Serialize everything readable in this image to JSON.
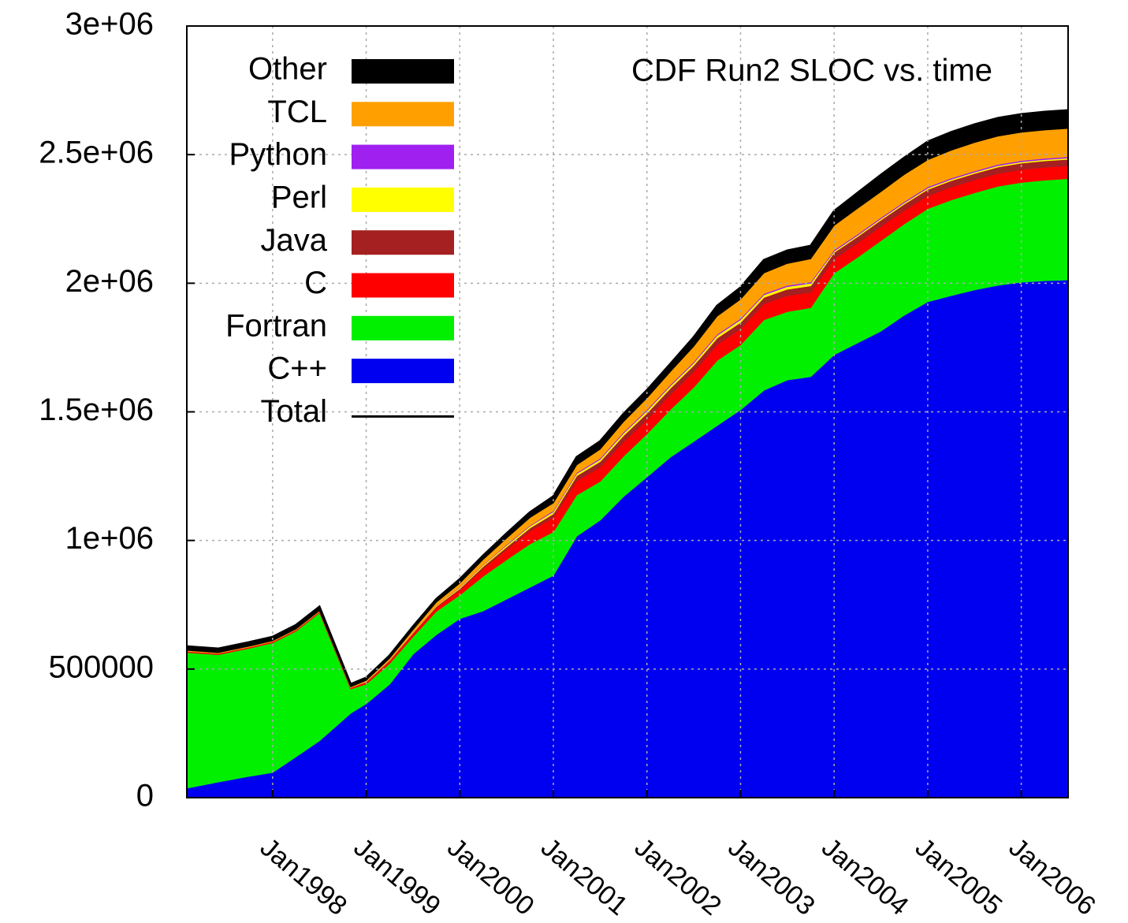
{
  "chart_data": {
    "type": "area",
    "stacked": true,
    "title": "CDF Run2 SLOC vs. time",
    "x": [
      "1997-02",
      "1997-06",
      "1997-10",
      "1998-01",
      "1998-04",
      "1998-07",
      "1998-11",
      "1999-01",
      "1999-04",
      "1999-07",
      "1999-10",
      "2000-01",
      "2000-04",
      "2000-07",
      "2000-10",
      "2001-01",
      "2001-04",
      "2001-07",
      "2001-10",
      "2002-01",
      "2002-04",
      "2002-07",
      "2002-10",
      "2003-01",
      "2003-04",
      "2003-07",
      "2003-10",
      "2004-01",
      "2004-04",
      "2004-07",
      "2004-10",
      "2005-01",
      "2005-04",
      "2005-07",
      "2005-10",
      "2006-01",
      "2006-04",
      "2006-07"
    ],
    "xlim": [
      "1997-02",
      "2006-07"
    ],
    "xticks": [
      {
        "value": "1998-01",
        "label": "Jan1998"
      },
      {
        "value": "1999-01",
        "label": "Jan1999"
      },
      {
        "value": "2000-01",
        "label": "Jan2000"
      },
      {
        "value": "2001-01",
        "label": "Jan2001"
      },
      {
        "value": "2002-01",
        "label": "Jan2002"
      },
      {
        "value": "2003-01",
        "label": "Jan2003"
      },
      {
        "value": "2004-01",
        "label": "Jan2004"
      },
      {
        "value": "2005-01",
        "label": "Jan2005"
      },
      {
        "value": "2006-01",
        "label": "Jan2006"
      }
    ],
    "ylim": [
      0,
      3000000
    ],
    "yticks": [
      0,
      500000,
      {
        "value": 1000000,
        "label": "1e+06"
      },
      {
        "value": 1500000,
        "label": "1.5e+06"
      },
      {
        "value": 2000000,
        "label": "2e+06"
      },
      {
        "value": 2500000,
        "label": "2.5e+06"
      },
      {
        "value": 3000000,
        "label": "3e+06"
      }
    ],
    "grid": true,
    "legend": "upper-left",
    "series": [
      {
        "name": "C++",
        "color": "#0000f0",
        "values": [
          37000,
          61000,
          83000,
          98000,
          159000,
          221000,
          328000,
          365000,
          441000,
          558000,
          634000,
          696000,
          726000,
          772000,
          818000,
          864000,
          1017000,
          1079000,
          1171000,
          1247000,
          1324000,
          1385000,
          1447000,
          1508000,
          1584000,
          1624000,
          1637000,
          1722000,
          1768000,
          1814000,
          1876000,
          1928000,
          1952000,
          1974000,
          1992000,
          2004000,
          2010000,
          2013000
        ]
      },
      {
        "name": "Fortran",
        "color": "#00f000",
        "values": [
          528000,
          495000,
          498000,
          504000,
          489000,
          498000,
          95000,
          77000,
          81000,
          68000,
          91000,
          92000,
          135000,
          153000,
          169000,
          170000,
          160000,
          151000,
          157000,
          168000,
          185000,
          211000,
          253000,
          253000,
          274000,
          266000,
          268000,
          318000,
          333000,
          352000,
          355000,
          362000,
          372000,
          378000,
          385000,
          388000,
          391000,
          394000
        ]
      },
      {
        "name": "C",
        "color": "#ff0000",
        "values": [
          5000,
          5000,
          5000,
          5000,
          5000,
          5000,
          5000,
          8000,
          10000,
          12000,
          15000,
          20000,
          30000,
          40000,
          50000,
          55000,
          55000,
          55000,
          55000,
          55000,
          58000,
          60000,
          62000,
          62000,
          62000,
          62000,
          60000,
          55000,
          55000,
          55000,
          52000,
          50000,
          50000,
          50000,
          50000,
          50000,
          50000,
          50000
        ]
      },
      {
        "name": "Java",
        "color": "#a52020",
        "values": [
          0,
          0,
          0,
          0,
          0,
          0,
          0,
          1000,
          2000,
          3000,
          4000,
          5000,
          8000,
          10000,
          12000,
          15000,
          20000,
          22000,
          25000,
          25000,
          25000,
          25000,
          25000,
          25000,
          25000,
          25000,
          25000,
          25000,
          25000,
          25000,
          25000,
          25000,
          25000,
          25000,
          25000,
          25000,
          25000,
          25000
        ]
      },
      {
        "name": "Perl",
        "color": "#ffff00",
        "values": [
          1000,
          1000,
          1000,
          1000,
          1000,
          1000,
          1000,
          2000,
          2000,
          3000,
          3000,
          4000,
          5000,
          6000,
          7000,
          8000,
          8000,
          8000,
          9000,
          9000,
          9000,
          9000,
          10000,
          10000,
          10000,
          10000,
          10000,
          5000,
          5000,
          5000,
          5000,
          5000,
          5000,
          5000,
          5000,
          5000,
          5000,
          5000
        ]
      },
      {
        "name": "Python",
        "color": "#a020f0",
        "values": [
          0,
          0,
          0,
          0,
          0,
          0,
          0,
          0,
          1000,
          1000,
          1000,
          2000,
          2000,
          3000,
          3000,
          4000,
          4000,
          5000,
          5000,
          5000,
          5000,
          5000,
          5000,
          5000,
          5000,
          5000,
          5000,
          5000,
          5000,
          5000,
          5000,
          5000,
          5000,
          5000,
          5000,
          5000,
          5000,
          5000
        ]
      },
      {
        "name": "TCL",
        "color": "#ffa000",
        "values": [
          2000,
          2000,
          2000,
          2000,
          2000,
          2000,
          2000,
          3000,
          5000,
          8000,
          12000,
          15000,
          20000,
          25000,
          30000,
          30000,
          30000,
          35000,
          40000,
          45000,
          50000,
          60000,
          70000,
          75000,
          80000,
          85000,
          90000,
          95000,
          100000,
          100000,
          105000,
          105000,
          108000,
          110000,
          110000,
          110000,
          110000,
          110000
        ]
      },
      {
        "name": "Other",
        "color": "#000000",
        "values": [
          15000,
          15000,
          15000,
          15000,
          15000,
          15000,
          10000,
          10000,
          10000,
          12000,
          12000,
          15000,
          15000,
          18000,
          20000,
          25000,
          30000,
          30000,
          30000,
          30000,
          30000,
          35000,
          40000,
          45000,
          50000,
          50000,
          50000,
          55000,
          60000,
          65000,
          65000,
          70000,
          70000,
          70000,
          70000,
          70000,
          70000,
          70000
        ]
      },
      {
        "name": "Total",
        "color": "#000000",
        "style": "line",
        "values": [
          588000,
          579000,
          604000,
          625000,
          671000,
          742000,
          441000,
          466000,
          552000,
          665000,
          772000,
          849000,
          941000,
          1027000,
          1109000,
          1171000,
          1324000,
          1385000,
          1492000,
          1584000,
          1686000,
          1790000,
          1912000,
          1983000,
          2090000,
          2127000,
          2145000,
          2280000,
          2351000,
          2421000,
          2488000,
          2550000,
          2587000,
          2617000,
          2642000,
          2657000,
          2666000,
          2672000
        ]
      }
    ]
  }
}
